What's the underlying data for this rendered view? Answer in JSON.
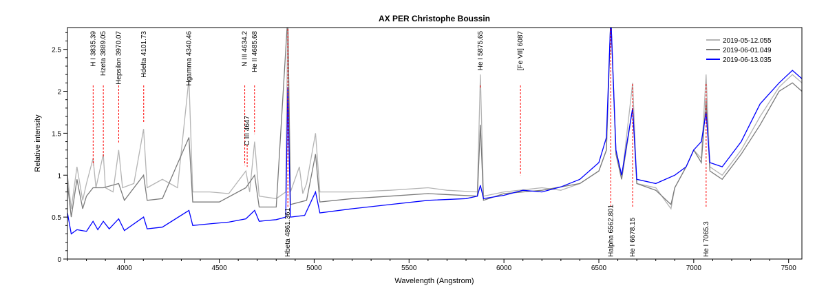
{
  "chart_data": {
    "type": "line",
    "title": "AX PER  Christophe Boussin",
    "xlabel": "Wavelength (Angstrom)",
    "ylabel": "Relative intensity",
    "xlim": [
      3700,
      7570
    ],
    "ylim": [
      0,
      2.76
    ],
    "x_ticks": [
      4000,
      4500,
      5000,
      5500,
      6000,
      6500,
      7000,
      7500
    ],
    "y_ticks": [
      0,
      0.5,
      1,
      1.5,
      2,
      2.5
    ],
    "y_tick_labels": [
      "0",
      "0.5",
      "1",
      "1.5",
      "2",
      "2.5"
    ],
    "grid": false,
    "legend_position": "top-right",
    "series": [
      {
        "name": "2019-05-12.055",
        "color": "#b4b4b4",
        "points": [
          [
            3700,
            1.0
          ],
          [
            3720,
            0.6
          ],
          [
            3750,
            1.1
          ],
          [
            3780,
            0.7
          ],
          [
            3800,
            0.9
          ],
          [
            3835,
            1.2
          ],
          [
            3850,
            0.85
          ],
          [
            3889,
            1.25
          ],
          [
            3900,
            0.85
          ],
          [
            3940,
            0.8
          ],
          [
            3970,
            1.3
          ],
          [
            3990,
            0.85
          ],
          [
            4050,
            0.9
          ],
          [
            4101,
            1.55
          ],
          [
            4120,
            0.85
          ],
          [
            4200,
            0.95
          ],
          [
            4280,
            0.85
          ],
          [
            4340,
            2.15
          ],
          [
            4360,
            0.8
          ],
          [
            4450,
            0.8
          ],
          [
            4550,
            0.78
          ],
          [
            4640,
            1.05
          ],
          [
            4660,
            0.8
          ],
          [
            4686,
            1.4
          ],
          [
            4710,
            0.75
          ],
          [
            4800,
            0.72
          ],
          [
            4850,
            0.8
          ],
          [
            4861,
            2.9
          ],
          [
            4875,
            0.8
          ],
          [
            4922,
            1.1
          ],
          [
            4940,
            0.78
          ],
          [
            4960,
            0.9
          ],
          [
            5007,
            1.5
          ],
          [
            5030,
            0.8
          ],
          [
            5200,
            0.8
          ],
          [
            5400,
            0.82
          ],
          [
            5600,
            0.85
          ],
          [
            5700,
            0.82
          ],
          [
            5860,
            0.8
          ],
          [
            5876,
            2.2
          ],
          [
            5892,
            0.75
          ],
          [
            6000,
            0.8
          ],
          [
            6200,
            0.85
          ],
          [
            6300,
            0.82
          ],
          [
            6400,
            0.9
          ],
          [
            6500,
            1.05
          ],
          [
            6540,
            1.3
          ],
          [
            6563,
            2.9
          ],
          [
            6590,
            1.3
          ],
          [
            6620,
            0.95
          ],
          [
            6678,
            2.1
          ],
          [
            6700,
            0.9
          ],
          [
            6800,
            0.85
          ],
          [
            6880,
            0.6
          ],
          [
            6900,
            0.85
          ],
          [
            6960,
            1.1
          ],
          [
            7000,
            1.3
          ],
          [
            7040,
            1.2
          ],
          [
            7065,
            2.2
          ],
          [
            7085,
            1.1
          ],
          [
            7150,
            1.0
          ],
          [
            7250,
            1.3
          ],
          [
            7350,
            1.7
          ],
          [
            7450,
            2.05
          ],
          [
            7520,
            2.2
          ],
          [
            7570,
            2.1
          ]
        ]
      },
      {
        "name": "2019-06-01.049",
        "color": "#7a7a7a",
        "points": [
          [
            3700,
            0.9
          ],
          [
            3720,
            0.5
          ],
          [
            3750,
            0.95
          ],
          [
            3780,
            0.6
          ],
          [
            3800,
            0.75
          ],
          [
            3835,
            0.85
          ],
          [
            3889,
            0.85
          ],
          [
            3970,
            0.9
          ],
          [
            4000,
            0.7
          ],
          [
            4101,
            1.0
          ],
          [
            4120,
            0.7
          ],
          [
            4200,
            0.72
          ],
          [
            4340,
            1.45
          ],
          [
            4360,
            0.68
          ],
          [
            4500,
            0.68
          ],
          [
            4640,
            0.85
          ],
          [
            4686,
            1.0
          ],
          [
            4710,
            0.62
          ],
          [
            4800,
            0.62
          ],
          [
            4861,
            2.9
          ],
          [
            4875,
            0.65
          ],
          [
            4960,
            0.7
          ],
          [
            5007,
            1.25
          ],
          [
            5030,
            0.68
          ],
          [
            5200,
            0.72
          ],
          [
            5400,
            0.75
          ],
          [
            5600,
            0.78
          ],
          [
            5860,
            0.75
          ],
          [
            5876,
            1.6
          ],
          [
            5892,
            0.7
          ],
          [
            6000,
            0.78
          ],
          [
            6200,
            0.82
          ],
          [
            6400,
            0.9
          ],
          [
            6500,
            1.05
          ],
          [
            6540,
            1.3
          ],
          [
            6563,
            2.9
          ],
          [
            6590,
            1.25
          ],
          [
            6620,
            0.95
          ],
          [
            6678,
            1.8
          ],
          [
            6700,
            0.9
          ],
          [
            6800,
            0.82
          ],
          [
            6880,
            0.65
          ],
          [
            6900,
            0.85
          ],
          [
            6960,
            1.1
          ],
          [
            7000,
            1.3
          ],
          [
            7040,
            1.15
          ],
          [
            7065,
            1.9
          ],
          [
            7085,
            1.05
          ],
          [
            7150,
            0.95
          ],
          [
            7250,
            1.25
          ],
          [
            7350,
            1.6
          ],
          [
            7450,
            2.0
          ],
          [
            7520,
            2.1
          ],
          [
            7570,
            2.0
          ]
        ]
      },
      {
        "name": "2019-06-13.035",
        "color": "#0000ff",
        "points": [
          [
            3700,
            0.55
          ],
          [
            3720,
            0.3
          ],
          [
            3750,
            0.35
          ],
          [
            3800,
            0.33
          ],
          [
            3835,
            0.45
          ],
          [
            3860,
            0.35
          ],
          [
            3889,
            0.45
          ],
          [
            3920,
            0.36
          ],
          [
            3970,
            0.48
          ],
          [
            4000,
            0.34
          ],
          [
            4101,
            0.5
          ],
          [
            4120,
            0.36
          ],
          [
            4200,
            0.38
          ],
          [
            4340,
            0.58
          ],
          [
            4360,
            0.4
          ],
          [
            4450,
            0.42
          ],
          [
            4550,
            0.44
          ],
          [
            4640,
            0.48
          ],
          [
            4686,
            0.58
          ],
          [
            4710,
            0.45
          ],
          [
            4800,
            0.47
          ],
          [
            4850,
            0.5
          ],
          [
            4861,
            2.05
          ],
          [
            4875,
            0.5
          ],
          [
            4950,
            0.52
          ],
          [
            5007,
            0.8
          ],
          [
            5030,
            0.55
          ],
          [
            5200,
            0.6
          ],
          [
            5400,
            0.65
          ],
          [
            5600,
            0.7
          ],
          [
            5800,
            0.72
          ],
          [
            5860,
            0.75
          ],
          [
            5876,
            0.88
          ],
          [
            5892,
            0.72
          ],
          [
            6000,
            0.76
          ],
          [
            6100,
            0.82
          ],
          [
            6200,
            0.8
          ],
          [
            6300,
            0.86
          ],
          [
            6400,
            0.95
          ],
          [
            6500,
            1.15
          ],
          [
            6540,
            1.45
          ],
          [
            6563,
            2.9
          ],
          [
            6590,
            1.3
          ],
          [
            6620,
            1.0
          ],
          [
            6678,
            1.8
          ],
          [
            6700,
            0.95
          ],
          [
            6800,
            0.9
          ],
          [
            6900,
            1.0
          ],
          [
            6960,
            1.1
          ],
          [
            7000,
            1.3
          ],
          [
            7040,
            1.4
          ],
          [
            7065,
            1.75
          ],
          [
            7085,
            1.15
          ],
          [
            7150,
            1.1
          ],
          [
            7250,
            1.4
          ],
          [
            7350,
            1.85
          ],
          [
            7450,
            2.1
          ],
          [
            7520,
            2.25
          ],
          [
            7570,
            2.15
          ]
        ]
      }
    ],
    "line_markers": [
      {
        "label": "H I 3835.39",
        "wavelength": 3835.39,
        "side": "top",
        "dash_to": 1.12
      },
      {
        "label": "Hzeta 3889.05",
        "wavelength": 3889.05,
        "side": "top",
        "dash_to": 1.22
      },
      {
        "label": "Hepsilon 3970.07",
        "wavelength": 3970.07,
        "side": "top",
        "dash_to": 1.39
      },
      {
        "label": "Hdelta 4101.73",
        "wavelength": 4101.73,
        "side": "top",
        "dash_to": 1.63
      },
      {
        "label": "Hgamma 4340.46",
        "wavelength": 4340.46,
        "side": "top",
        "dash_to": 2.07
      },
      {
        "label": "N III 4634.2",
        "wavelength": 4634.2,
        "side": "top",
        "dash_to": 1.12
      },
      {
        "label": "He II 4685.68",
        "wavelength": 4685.68,
        "side": "top",
        "dash_to": 1.49
      },
      {
        "label": "C III 4647",
        "wavelength": 4647,
        "side": "mid",
        "dash_to": 1.1
      },
      {
        "label": "He I 5875.65",
        "wavelength": 5875.65,
        "side": "top",
        "dash_to": 2.2
      },
      {
        "label": "[Fe VII] 6087",
        "wavelength": 6087,
        "side": "top",
        "dash_to": 1.0
      },
      {
        "label": "Hbeta 4861.361",
        "wavelength": 4861.361,
        "side": "bottom",
        "dash_to": 2.76
      },
      {
        "label": "Halpha 6562.801",
        "wavelength": 6562.801,
        "side": "bottom",
        "dash_to": 2.76
      },
      {
        "label": "He I 6678.15",
        "wavelength": 6678.15,
        "side": "bottom",
        "dash_to": 2.1
      },
      {
        "label": "He I 7065.3",
        "wavelength": 7065.3,
        "side": "bottom",
        "dash_to": 2.1
      }
    ],
    "marker_color": "#ff0000"
  }
}
